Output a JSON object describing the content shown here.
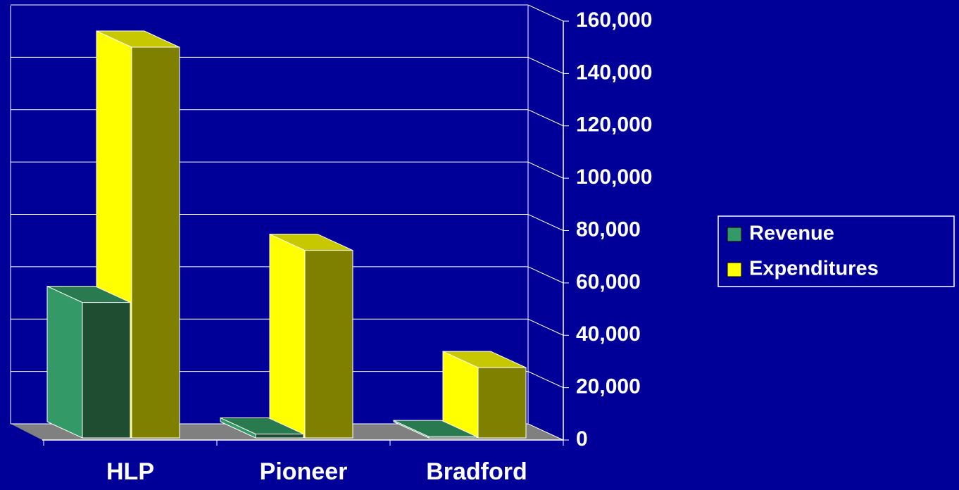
{
  "chart_data": {
    "type": "bar3d",
    "categories": [
      "HLP",
      "Pioneer",
      "Bradford"
    ],
    "series": [
      {
        "name": "Revenue",
        "color": "#1e4d32",
        "side_color": "#339966",
        "top_color": "#2a7a50",
        "values": [
          52000,
          1500,
          500
        ]
      },
      {
        "name": "Expenditures",
        "color": "#808000",
        "side_color": "#ffff00",
        "top_color": "#c8c800",
        "values": [
          150000,
          72000,
          27000
        ]
      }
    ],
    "ylim": [
      0,
      160000
    ],
    "yticks": [
      0,
      {
        "value": 20000,
        "label": "20,000"
      },
      {
        "value": 40000,
        "label": "40,000"
      },
      {
        "value": 60000,
        "label": "60,000"
      },
      {
        "value": 80000,
        "label": "80,000"
      },
      {
        "value": 100000,
        "label": "100,000"
      },
      {
        "value": 120000,
        "label": "120,000"
      },
      {
        "value": 140000,
        "label": "140,000"
      },
      {
        "value": 160000,
        "label": "160,000"
      }
    ],
    "grid": true,
    "legend": "right"
  }
}
